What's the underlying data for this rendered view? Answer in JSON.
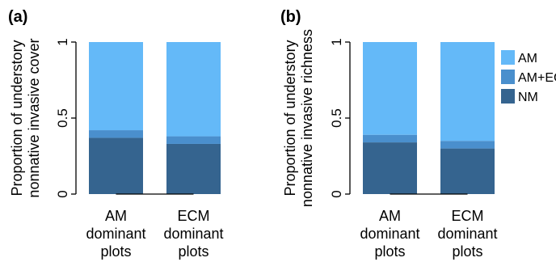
{
  "chart_data": [
    {
      "type": "bar",
      "stacked": true,
      "panel": "(a)",
      "ylabel": [
        "Proportion of understory",
        "nonnative invasive cover"
      ],
      "categories": [
        [
          "AM",
          "dominant",
          "plots"
        ],
        [
          "ECM",
          "dominant",
          "plots"
        ]
      ],
      "ylim": [
        0,
        1
      ],
      "yticks": [
        "0",
        "0.5",
        "1"
      ],
      "series": [
        {
          "name": "NM",
          "color": "#35648f",
          "values": [
            0.37,
            0.33
          ]
        },
        {
          "name": "AM+ECM",
          "color": "#4a8fcd",
          "values": [
            0.05,
            0.05
          ]
        },
        {
          "name": "AM",
          "color": "#64b9f8",
          "values": [
            0.58,
            0.62
          ]
        }
      ]
    },
    {
      "type": "bar",
      "stacked": true,
      "panel": "(b)",
      "ylabel": [
        "Proportion of understory",
        "nonnative invasive richness"
      ],
      "categories": [
        [
          "AM",
          "dominant",
          "plots"
        ],
        [
          "ECM",
          "dominant",
          "plots"
        ]
      ],
      "ylim": [
        0,
        1
      ],
      "yticks": [
        "0",
        "0.5",
        "1"
      ],
      "series": [
        {
          "name": "NM",
          "color": "#35648f",
          "values": [
            0.34,
            0.3
          ]
        },
        {
          "name": "AM+ECM",
          "color": "#4a8fcd",
          "values": [
            0.05,
            0.05
          ]
        },
        {
          "name": "AM",
          "color": "#64b9f8",
          "values": [
            0.61,
            0.65
          ]
        }
      ]
    }
  ],
  "legend": {
    "placement": "right",
    "entries": [
      {
        "label": "AM",
        "color": "#64b9f8"
      },
      {
        "label": "AM+ECM",
        "color": "#4a8fcd"
      },
      {
        "label": "NM",
        "color": "#35648f"
      }
    ]
  }
}
